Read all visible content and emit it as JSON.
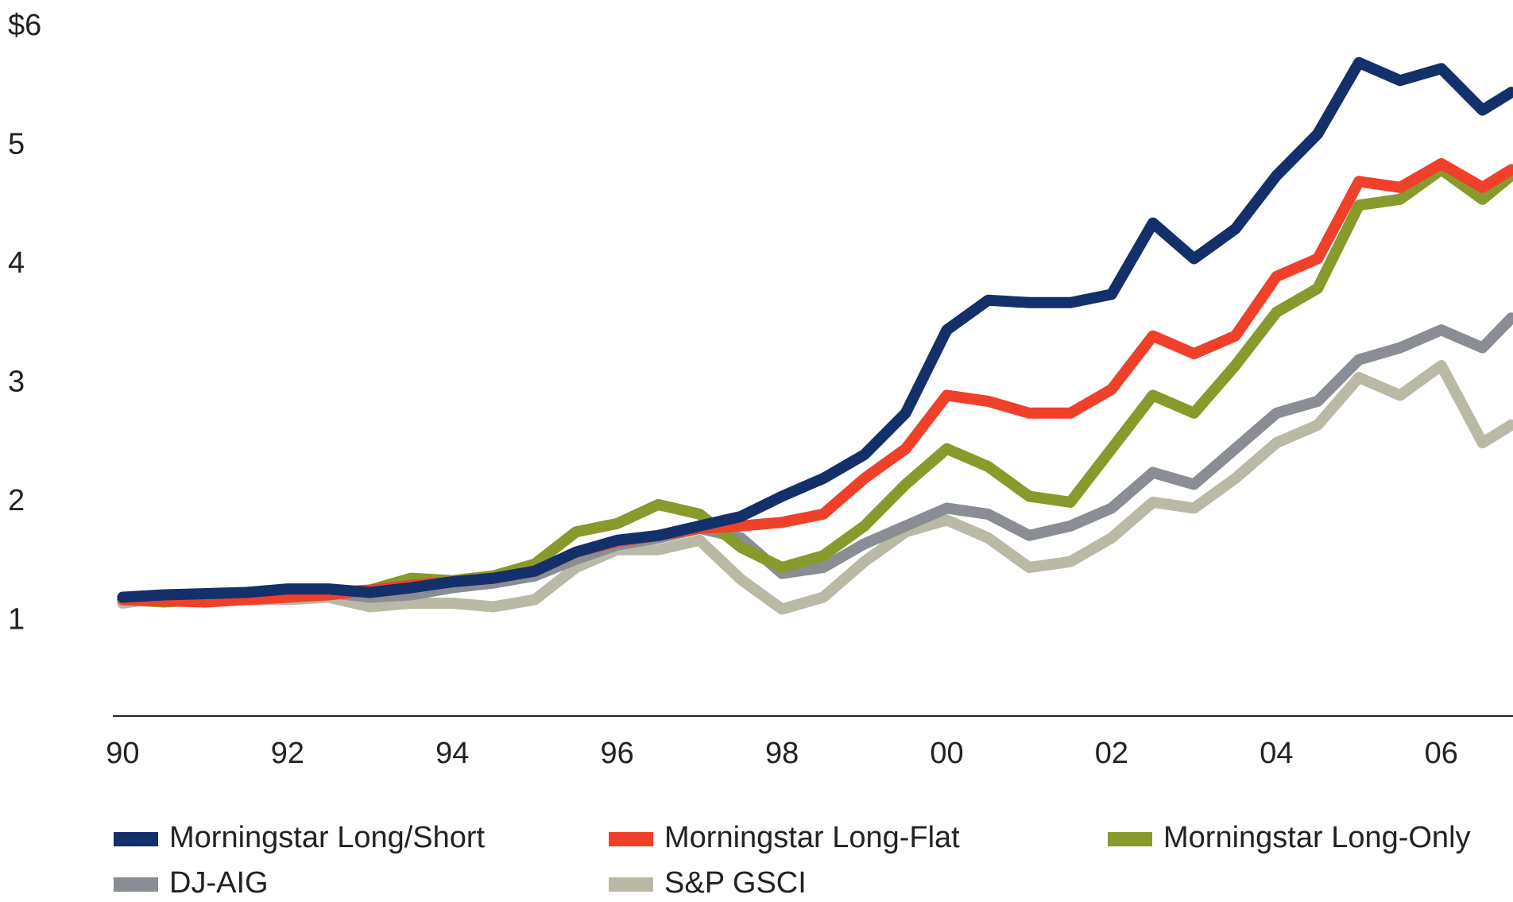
{
  "chart_data": {
    "type": "line",
    "x": [
      1990,
      1990.5,
      1991,
      1991.5,
      1992,
      1992.5,
      1993,
      1993.5,
      1994,
      1994.5,
      1995,
      1995.5,
      1996,
      1996.5,
      1997,
      1997.5,
      1998,
      1998.5,
      1999,
      1999.5,
      2000,
      2000.5,
      2001,
      2001.5,
      2002,
      2002.5,
      2003,
      2003.5,
      2004,
      2004.5,
      2005,
      2005.5,
      2006,
      2006.5,
      2006.85
    ],
    "series": [
      {
        "name": "Morningstar Long/Short",
        "color": "#14306b",
        "values": [
          1.2,
          1.22,
          1.23,
          1.24,
          1.27,
          1.27,
          1.24,
          1.28,
          1.33,
          1.36,
          1.42,
          1.58,
          1.68,
          1.72,
          1.8,
          1.88,
          2.05,
          2.2,
          2.4,
          2.75,
          3.45,
          3.7,
          3.68,
          3.68,
          3.75,
          4.35,
          4.05,
          4.3,
          4.75,
          5.1,
          5.7,
          5.55,
          5.65,
          5.3,
          5.45
        ]
      },
      {
        "name": "Morningstar Long-Flat",
        "color": "#f0402a",
        "values": [
          1.18,
          1.17,
          1.16,
          1.18,
          1.2,
          1.22,
          1.26,
          1.3,
          1.33,
          1.36,
          1.42,
          1.58,
          1.67,
          1.72,
          1.78,
          1.8,
          1.83,
          1.9,
          2.2,
          2.45,
          2.9,
          2.85,
          2.75,
          2.75,
          2.95,
          3.4,
          3.25,
          3.4,
          3.9,
          4.05,
          4.7,
          4.65,
          4.85,
          4.65,
          4.8
        ]
      },
      {
        "name": "Morningstar Long-Only",
        "color": "#879a2b",
        "values": [
          1.18,
          1.16,
          1.18,
          1.2,
          1.2,
          1.24,
          1.26,
          1.36,
          1.34,
          1.38,
          1.48,
          1.75,
          1.82,
          1.98,
          1.9,
          1.62,
          1.45,
          1.55,
          1.8,
          2.15,
          2.45,
          2.3,
          2.05,
          2.0,
          2.45,
          2.9,
          2.75,
          3.15,
          3.6,
          3.8,
          4.5,
          4.55,
          4.8,
          4.55,
          4.75
        ]
      },
      {
        "name": "DJ-AIG",
        "color": "#8a8d93",
        "values": [
          1.18,
          1.2,
          1.22,
          1.22,
          1.21,
          1.24,
          1.2,
          1.22,
          1.28,
          1.32,
          1.38,
          1.52,
          1.64,
          1.7,
          1.78,
          1.7,
          1.4,
          1.45,
          1.65,
          1.8,
          1.95,
          1.9,
          1.72,
          1.8,
          1.95,
          2.25,
          2.15,
          2.45,
          2.75,
          2.85,
          3.2,
          3.3,
          3.45,
          3.3,
          3.55
        ]
      },
      {
        "name": "S&P GSCI",
        "color": "#b9b9a6",
        "values": [
          1.15,
          1.2,
          1.22,
          1.18,
          1.18,
          1.2,
          1.12,
          1.15,
          1.15,
          1.12,
          1.18,
          1.45,
          1.6,
          1.6,
          1.68,
          1.35,
          1.1,
          1.2,
          1.5,
          1.75,
          1.85,
          1.7,
          1.45,
          1.5,
          1.7,
          2.0,
          1.95,
          2.2,
          2.5,
          2.65,
          3.05,
          2.9,
          3.15,
          2.5,
          2.65
        ]
      }
    ],
    "xlim": [
      1989.88,
      2006.87
    ],
    "xticks": [
      {
        "value": 1990,
        "label": "90"
      },
      {
        "value": 1992,
        "label": "92"
      },
      {
        "value": 1994,
        "label": "94"
      },
      {
        "value": 1996,
        "label": "96"
      },
      {
        "value": 1998,
        "label": "98"
      },
      {
        "value": 2000,
        "label": "00"
      },
      {
        "value": 2002,
        "label": "02"
      },
      {
        "value": 2004,
        "label": "04"
      },
      {
        "value": 2006,
        "label": "06"
      }
    ],
    "ylim": [
      0.2,
      6
    ],
    "yticks": [
      1,
      2,
      3,
      4,
      5,
      {
        "value": 6,
        "label": "$6"
      }
    ],
    "grid": false
  }
}
